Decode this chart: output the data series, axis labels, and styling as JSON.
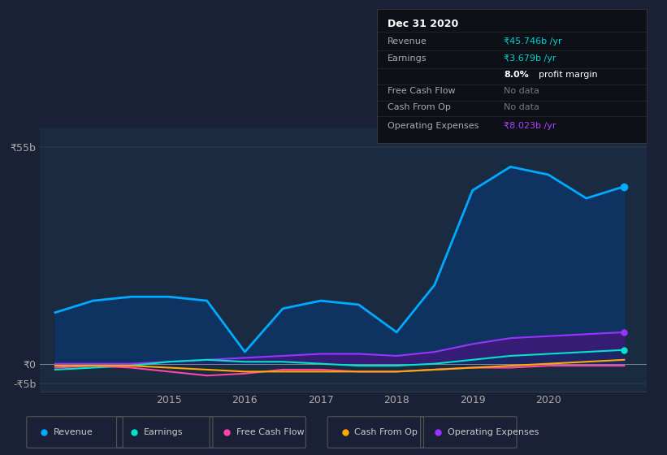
{
  "bg_color": "#1a2035",
  "plot_bg": "#1a2a40",
  "ylim": [
    -7,
    60
  ],
  "yticks": [
    -5,
    0,
    55
  ],
  "ytick_labels": [
    "-₹5b",
    "₹0",
    "₹55b"
  ],
  "xlabel_years": [
    2015,
    2016,
    2017,
    2018,
    2019,
    2020
  ],
  "legend_items": [
    {
      "label": "Revenue",
      "color": "#00aaff"
    },
    {
      "label": "Earnings",
      "color": "#00e5cc"
    },
    {
      "label": "Free Cash Flow",
      "color": "#ff44aa"
    },
    {
      "label": "Cash From Op",
      "color": "#ffaa00"
    },
    {
      "label": "Operating Expenses",
      "color": "#9933ff"
    }
  ],
  "series": {
    "x": [
      2013.5,
      2014.0,
      2014.5,
      2015.0,
      2015.5,
      2016.0,
      2016.5,
      2017.0,
      2017.5,
      2018.0,
      2018.5,
      2019.0,
      2019.5,
      2020.0,
      2020.5,
      2021.0
    ],
    "revenue": [
      13,
      16,
      17,
      17,
      16,
      3,
      14,
      16,
      15,
      8,
      20,
      44,
      50,
      48,
      42,
      45
    ],
    "earnings": [
      -1.5,
      -1,
      -0.5,
      0.5,
      1,
      0.5,
      0.5,
      0,
      -0.5,
      -0.5,
      0,
      1,
      2,
      2.5,
      3,
      3.5
    ],
    "free_cf": [
      -1,
      -0.5,
      -1,
      -2,
      -3,
      -2.5,
      -1.5,
      -1.5,
      -2,
      -2,
      -1.5,
      -1,
      -1,
      -0.5,
      -0.5,
      -0.5
    ],
    "cash_op": [
      -0.5,
      -0.5,
      -0.5,
      -1,
      -1.5,
      -2,
      -2,
      -2,
      -2,
      -2,
      -1.5,
      -1,
      -0.5,
      0,
      0.5,
      1
    ],
    "opex": [
      0,
      0,
      0,
      0.5,
      1,
      1.5,
      2,
      2.5,
      2.5,
      2,
      3,
      5,
      6.5,
      7,
      7.5,
      8
    ]
  },
  "info_box": {
    "date": "Dec 31 2020",
    "rows": [
      {
        "label": "Revenue",
        "value": "₹45.746b /yr",
        "value_color": "#00d4d4"
      },
      {
        "label": "Earnings",
        "value": "₹3.679b /yr",
        "value_color": "#00d4d4"
      },
      {
        "label": "",
        "value": "8.0% profit margin",
        "value_color": "#ffffff"
      },
      {
        "label": "Free Cash Flow",
        "value": "No data",
        "value_color": "#777777"
      },
      {
        "label": "Cash From Op",
        "value": "No data",
        "value_color": "#777777"
      },
      {
        "label": "Operating Expenses",
        "value": "₹8.023b /yr",
        "value_color": "#aa44ff"
      }
    ]
  }
}
